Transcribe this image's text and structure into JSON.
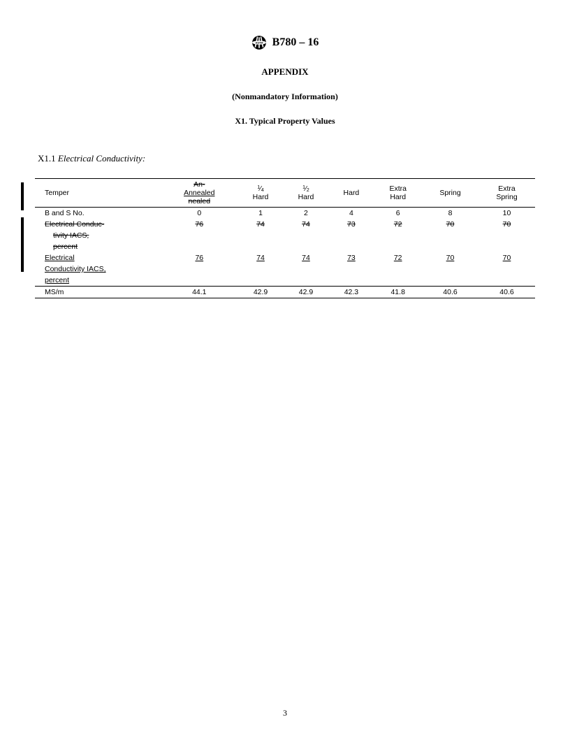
{
  "doc_id": "B780 – 16",
  "appendix_label": "APPENDIX",
  "nonmandatory_label": "(Nonmandatory Information)",
  "x1_title": "X1. Typical Property Values",
  "section": {
    "num": "X1.1",
    "text": "Electrical Conductivity:"
  },
  "table": {
    "columns": [
      {
        "label": "Temper"
      },
      {
        "label_struck": "An-",
        "label_under": "Annealed",
        "label_struck2": "nealed"
      },
      {
        "frac_num": "1",
        "frac_den": "4",
        "sub": "Hard"
      },
      {
        "frac_num": "1",
        "frac_den": "2",
        "sub": "Hard"
      },
      {
        "label": "Hard"
      },
      {
        "label_top": "Extra",
        "label_bot": "Hard"
      },
      {
        "label": "Spring"
      },
      {
        "label_top": "Extra",
        "label_bot": "Spring"
      }
    ],
    "rows": [
      {
        "label": "B and S No.",
        "v": [
          "0",
          "1",
          "2",
          "4",
          "6",
          "8",
          "10"
        ]
      },
      {
        "label": "Electrical Conduc-",
        "struck": true,
        "v": [
          "76",
          "74",
          "74",
          "73",
          "72",
          "70",
          "70"
        ],
        "vstruck": true
      },
      {
        "label": "tivity IACS,",
        "struck": true,
        "indent": true
      },
      {
        "label": "percent",
        "struck": true,
        "indent": true
      },
      {
        "label": "Electrical",
        "under": true,
        "v": [
          "76",
          "74",
          "74",
          "73",
          "72",
          "70",
          "70"
        ],
        "vunder": true
      },
      {
        "label": "Conductivity IACS,",
        "under": true
      },
      {
        "label": "percent",
        "under": true
      },
      {
        "label": "MS/m",
        "v": [
          "44.1",
          "42.9",
          "42.9",
          "42.3",
          "41.8",
          "40.6",
          "40.6"
        ],
        "midrule": true
      }
    ]
  },
  "page_number": "3",
  "colors": {
    "text": "#000000",
    "bg": "#ffffff"
  }
}
